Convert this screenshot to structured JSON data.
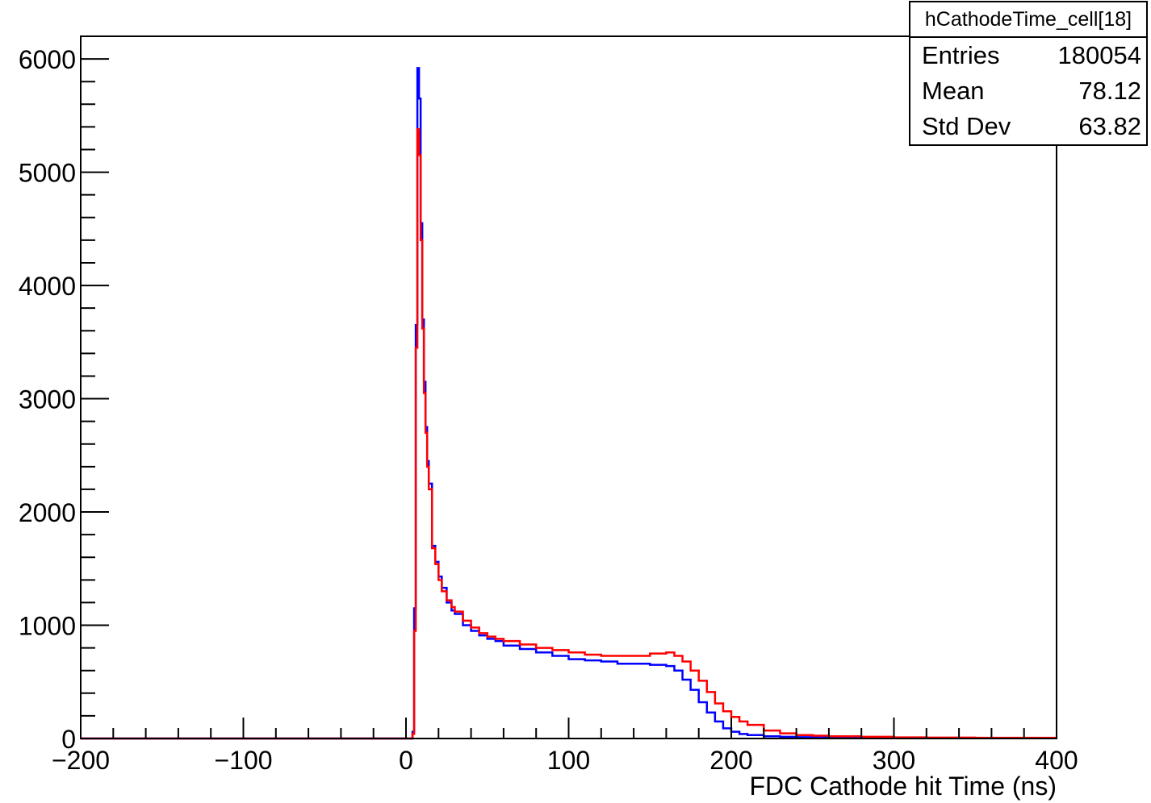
{
  "chart_data": {
    "type": "line",
    "title": "",
    "xlabel": "FDC Cathode hit Time (ns)",
    "ylabel": "",
    "xlim": [
      -200,
      400
    ],
    "ylim": [
      0,
      6200
    ],
    "x_ticks": [
      -200,
      -100,
      0,
      100,
      200,
      300,
      400
    ],
    "y_ticks": [
      0,
      1000,
      2000,
      3000,
      4000,
      5000,
      6000
    ],
    "x_tick_labels": [
      "−200",
      "−100",
      "0",
      "100",
      "200",
      "300",
      "400"
    ],
    "y_tick_labels": [
      "0",
      "1000",
      "2000",
      "3000",
      "4000",
      "5000",
      "6000"
    ],
    "grid": false,
    "style": "step histogram",
    "series": [
      {
        "color": "#0000ff",
        "x": [
          -200,
          3,
          4,
          5,
          6,
          7,
          8,
          9,
          10,
          11,
          12,
          13,
          14,
          16,
          18,
          20,
          22,
          25,
          28,
          30,
          35,
          40,
          45,
          50,
          55,
          60,
          70,
          80,
          90,
          100,
          110,
          120,
          130,
          140,
          150,
          160,
          165,
          170,
          175,
          180,
          185,
          190,
          195,
          200,
          205,
          210,
          220,
          230,
          240,
          250,
          260,
          280,
          300,
          320,
          350,
          400
        ],
        "y": [
          0,
          0,
          60,
          1150,
          3650,
          5920,
          5650,
          4550,
          3700,
          3150,
          2750,
          2450,
          2250,
          1700,
          1560,
          1430,
          1330,
          1200,
          1130,
          1100,
          1000,
          950,
          910,
          880,
          860,
          820,
          790,
          760,
          730,
          700,
          690,
          680,
          660,
          660,
          650,
          640,
          600,
          520,
          430,
          320,
          230,
          150,
          90,
          60,
          40,
          30,
          20,
          15,
          12,
          12,
          10,
          8,
          6,
          5,
          5,
          5
        ]
      },
      {
        "color": "#ff0000",
        "x": [
          -200,
          3,
          4,
          5,
          6,
          7,
          8,
          9,
          10,
          11,
          12,
          13,
          14,
          16,
          18,
          20,
          22,
          25,
          28,
          30,
          35,
          40,
          45,
          50,
          55,
          60,
          70,
          80,
          90,
          100,
          110,
          120,
          130,
          140,
          150,
          160,
          165,
          170,
          175,
          180,
          185,
          190,
          195,
          200,
          205,
          210,
          220,
          230,
          240,
          250,
          260,
          280,
          300,
          320,
          350,
          400
        ],
        "y": [
          0,
          0,
          40,
          950,
          3450,
          5380,
          5150,
          4400,
          3620,
          3050,
          2700,
          2400,
          2200,
          1680,
          1540,
          1400,
          1300,
          1220,
          1160,
          1120,
          1040,
          980,
          930,
          900,
          880,
          860,
          830,
          800,
          780,
          760,
          740,
          730,
          730,
          730,
          750,
          760,
          730,
          680,
          600,
          510,
          410,
          310,
          240,
          190,
          150,
          120,
          70,
          45,
          30,
          25,
          20,
          15,
          10,
          8,
          6,
          5
        ]
      }
    ],
    "legend": {
      "placement": "top-right",
      "title": "hCathodeTime_cell[18]",
      "rows": [
        {
          "label": "Entries",
          "value": "180054"
        },
        {
          "label": "Mean",
          "value": "78.12"
        },
        {
          "label": "Std Dev",
          "value": "63.82"
        }
      ]
    }
  }
}
